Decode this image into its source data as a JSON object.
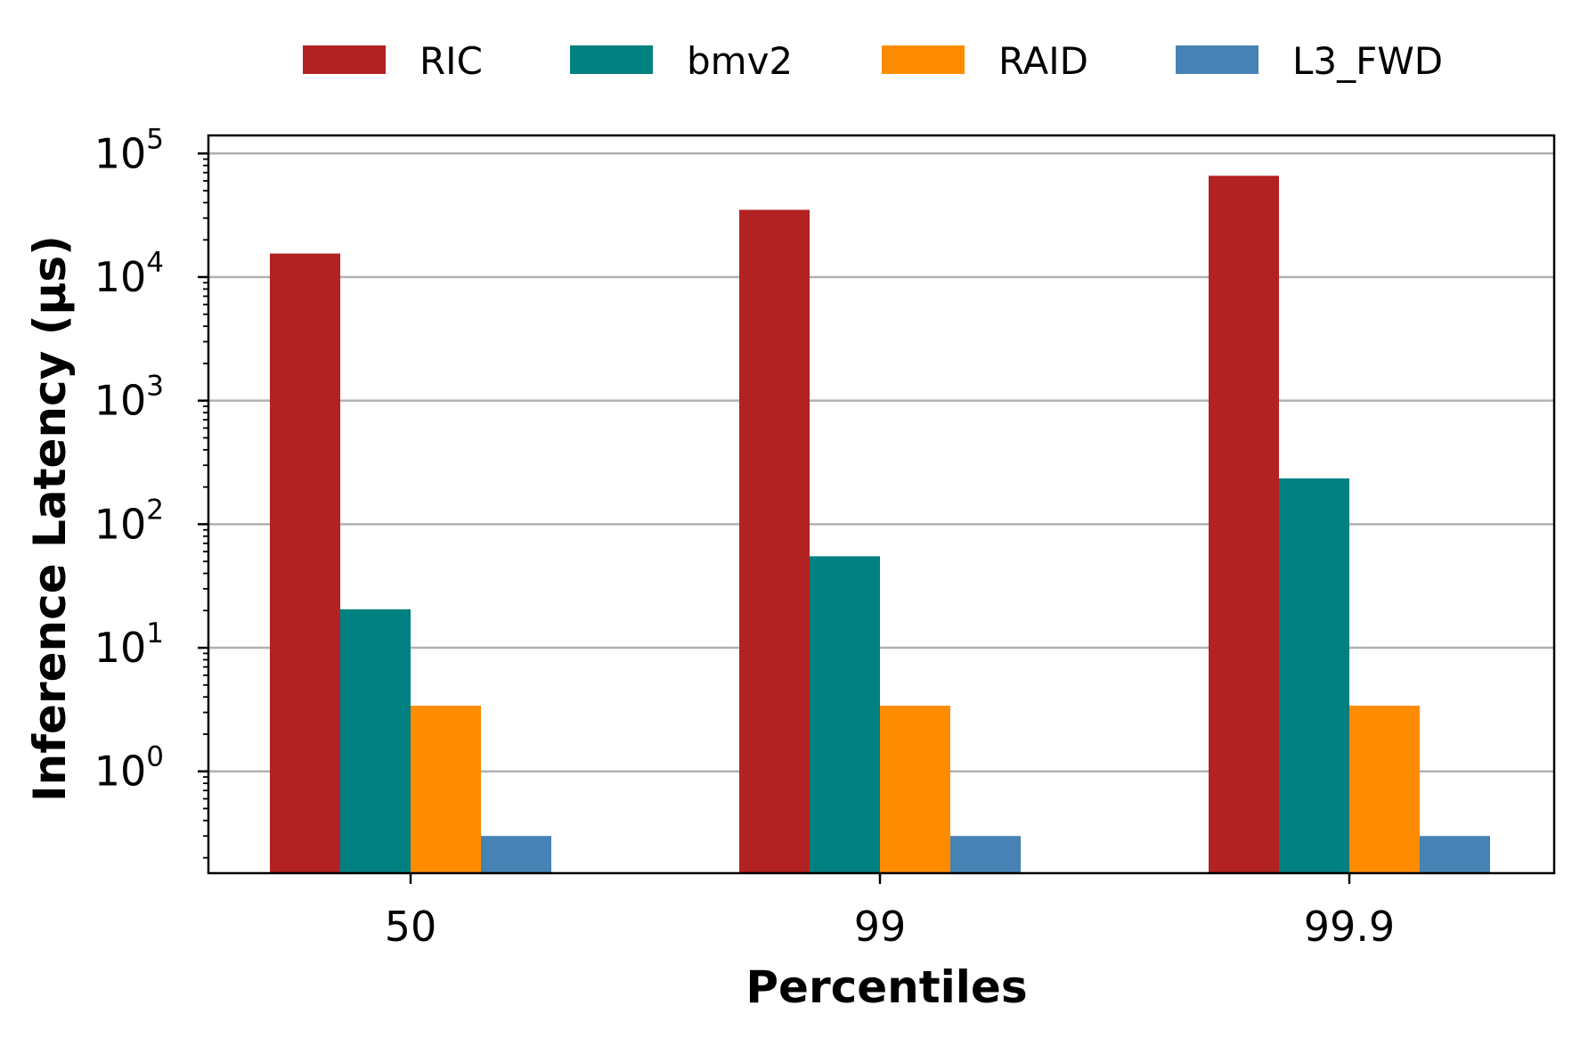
{
  "chart_data": {
    "type": "bar",
    "title": "",
    "xlabel": "Percentiles",
    "ylabel": "Inference Latency (μs)",
    "yscale": "log",
    "ylim": [
      0.15,
      140000
    ],
    "y_ticks": [
      {
        "value": 1,
        "base": "10",
        "exp": "0"
      },
      {
        "value": 10,
        "base": "10",
        "exp": "1"
      },
      {
        "value": 100,
        "base": "10",
        "exp": "2"
      },
      {
        "value": 1000,
        "base": "10",
        "exp": "3"
      },
      {
        "value": 10000,
        "base": "10",
        "exp": "4"
      },
      {
        "value": 100000,
        "base": "10",
        "exp": "5"
      }
    ],
    "grid": "y-major",
    "legend_position": "top",
    "categories": [
      "50",
      "99",
      "99.9"
    ],
    "series": [
      {
        "name": "RIC",
        "color": "#b22222",
        "values": [
          15500,
          35000,
          66000
        ]
      },
      {
        "name": "bmv2",
        "color": "#008080",
        "values": [
          20.5,
          55,
          235
        ]
      },
      {
        "name": "RAID",
        "color": "#ff8c00",
        "values": [
          3.4,
          3.4,
          3.4
        ]
      },
      {
        "name": "L3_FWD",
        "color": "#4682b4",
        "values": [
          0.3,
          0.3,
          0.3
        ]
      }
    ]
  }
}
